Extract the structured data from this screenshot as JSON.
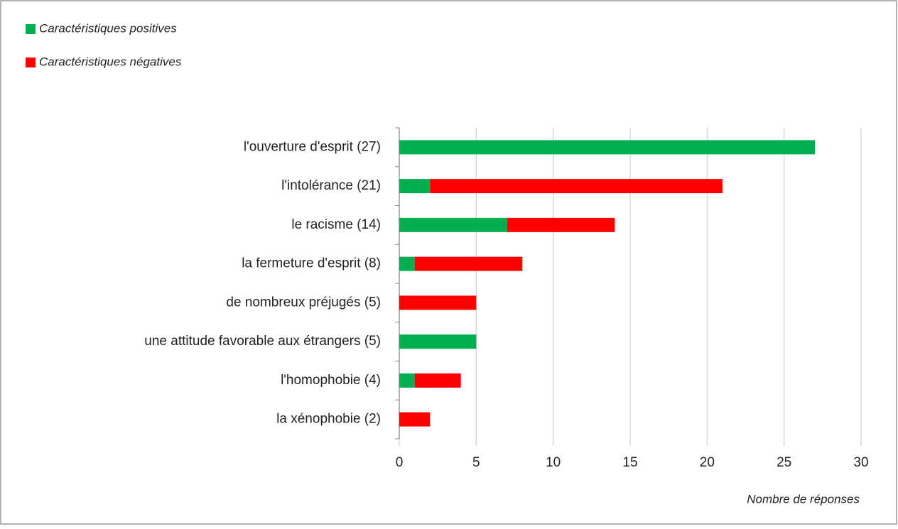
{
  "chart_data": {
    "type": "bar",
    "orientation": "horizontal",
    "stacked": true,
    "categories": [
      "l'ouverture d'esprit (27)",
      "l'intolérance (21)",
      "le racisme (14)",
      "la fermeture d'esprit (8)",
      "de nombreux préjugés (5)",
      "une attitude favorable aux étrangers (5)",
      "l'homophobie (4)",
      "la xénophobie (2)"
    ],
    "series": [
      {
        "name": "Caractéristiques positives",
        "color": "#00b050",
        "values": [
          27,
          2,
          7,
          1,
          0,
          5,
          1,
          0
        ]
      },
      {
        "name": "Caractéristiques négatives",
        "color": "#ff0000",
        "values": [
          0,
          19,
          7,
          7,
          5,
          0,
          3,
          2
        ]
      }
    ],
    "xlabel": "Nombre de réponses",
    "xlim": [
      0,
      30
    ],
    "xticks": [
      0,
      5,
      10,
      15,
      20,
      25,
      30
    ],
    "grid": true,
    "legend": "top-left"
  }
}
